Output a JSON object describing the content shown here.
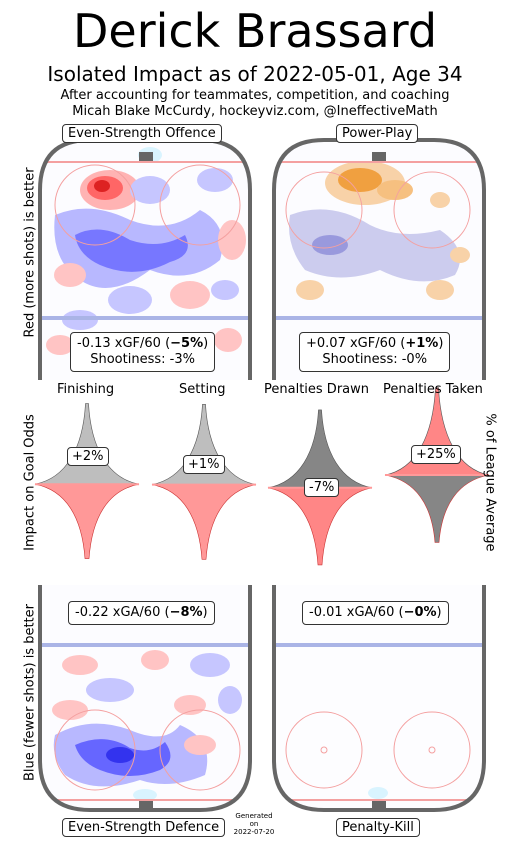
{
  "header": {
    "title": "Derick Brassard",
    "subtitle": "Isolated Impact as of 2022-05-01, Age 34",
    "note_line1": "After accounting for teammates, competition, and coaching",
    "note_line2": "Micah Blake McCurdy, hockeyviz.com, @IneffectiveMath"
  },
  "side_labels": {
    "offence": "Red (more shots) is better",
    "middle": "Impact on Goal Odds",
    "defence": "Blue (fewer shots) is better",
    "right": "% of League Average"
  },
  "panels": {
    "even_strength_offence": {
      "label": "Even-Strength Offence",
      "stat_line1_prefix": "-0.13 xGF/60 (",
      "stat_line1_bold": "−5%",
      "stat_line1_suffix": ")",
      "stat_line2": "Shootiness: -3%"
    },
    "power_play": {
      "label": "Power-Play",
      "stat_line1_prefix": "+0.07 xGF/60 (",
      "stat_line1_bold": "+1%",
      "stat_line1_suffix": ")",
      "stat_line2": "Shootiness: -0%"
    },
    "even_strength_defence": {
      "label": "Even-Strength Defence",
      "stat_line1_prefix": "-0.22 xGA/60 (",
      "stat_line1_bold": "−8%",
      "stat_line1_suffix": ")"
    },
    "penalty_kill": {
      "label": "Penalty-Kill",
      "stat_line1_prefix": "-0.01 xGA/60 (",
      "stat_line1_bold": "−0%",
      "stat_line1_suffix": ")"
    }
  },
  "footer": {
    "generated_line1": "Generated",
    "generated_line2": "on",
    "generated_line3": "2022-07-20"
  },
  "colors": {
    "positive": "#ff3333",
    "negative": "#3333ff",
    "pp_positive": "#f0a040",
    "pp_negative": "#8888cc",
    "rink": "#666666"
  },
  "chart_data": {
    "type": "violin",
    "categories": [
      "Finishing",
      "Setting",
      "Penalties Drawn",
      "Penalties Taken"
    ],
    "values_pct": [
      2,
      1,
      -7,
      25
    ],
    "labels": [
      "+2%",
      "+1%",
      "-7%",
      "+25%"
    ]
  }
}
